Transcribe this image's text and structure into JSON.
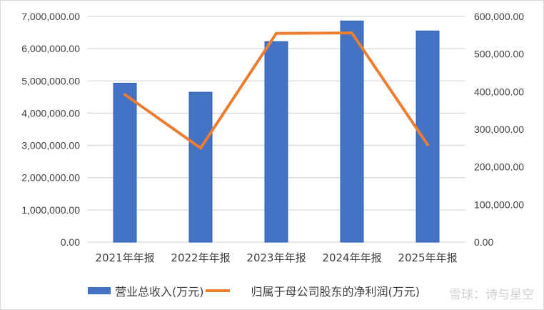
{
  "chart_data": {
    "type": "bar+line",
    "categories": [
      "2021年年报",
      "2022年年报",
      "2023年年报",
      "2024年年报",
      "2025年年报"
    ],
    "series": [
      {
        "name": "营业总收入(万元)",
        "type": "bar",
        "axis": "left",
        "color": "#4472c4",
        "values": [
          4930000,
          4650000,
          6220000,
          6860000,
          6550000
        ]
      },
      {
        "name": "归属于母公司股东的净利润(万元)",
        "type": "line",
        "axis": "right",
        "color": "#ed7d31",
        "values": [
          392000,
          250000,
          555000,
          556000,
          259000
        ]
      }
    ],
    "left_axis": {
      "ylim": [
        0,
        7000000
      ],
      "ticks": [
        "0.00",
        "1,000,000.00",
        "2,000,000.00",
        "3,000,000.00",
        "4,000,000.00",
        "5,000,000.00",
        "6,000,000.00",
        "7,000,000.00"
      ]
    },
    "right_axis": {
      "ylim": [
        0,
        600000
      ],
      "ticks": [
        "0.00",
        "100,000.00",
        "200,000.00",
        "300,000.00",
        "400,000.00",
        "500,000.00",
        "600,000.00"
      ]
    },
    "grid": true,
    "legend": "bottom"
  },
  "watermark": "雪球：诗与星空"
}
